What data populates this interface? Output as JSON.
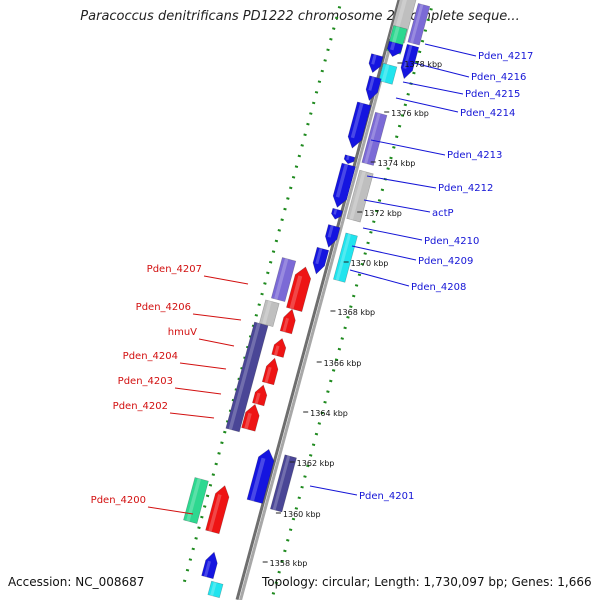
{
  "title": "Paracoccus denitrificans PD1222 chromosome 2, complete seque...",
  "accession_text": "Accession: NC_008687",
  "topology_text": "Topology: circular; Length: 1,730,097 bp; Genes: 1,666",
  "colors": {
    "blue": "#1515e0",
    "lavender": "#7b6ad6",
    "slate": "#4a4696",
    "grey": "#bfbfbf",
    "cyan": "#22e4ee",
    "green": "#2ed890",
    "red": "#ee1414",
    "top_label": "#1515d6",
    "bottom_label": "#d21010",
    "backbone": "#8c8c8c",
    "dotted": "#1f8a1f"
  },
  "ticks": [
    "1378 kbp",
    "1376 kbp",
    "1374 kbp",
    "1372 kbp",
    "1370 kbp",
    "1368 kbp",
    "1366 kbp",
    "1364 kbp",
    "1362 kbp",
    "1360 kbp",
    "1358 kbp"
  ],
  "top_genes": [
    "Pden_4217",
    "Pden_4216",
    "Pden_4215",
    "Pden_4214",
    "Pden_4213",
    "Pden_4212",
    "actP",
    "Pden_4210",
    "Pden_4209",
    "Pden_4208",
    "Pden_4201"
  ],
  "bottom_genes": [
    "Pden_4207",
    "Pden_4206",
    "hmuV",
    "Pden_4204",
    "Pden_4203",
    "Pden_4202",
    "Pden_4200"
  ]
}
